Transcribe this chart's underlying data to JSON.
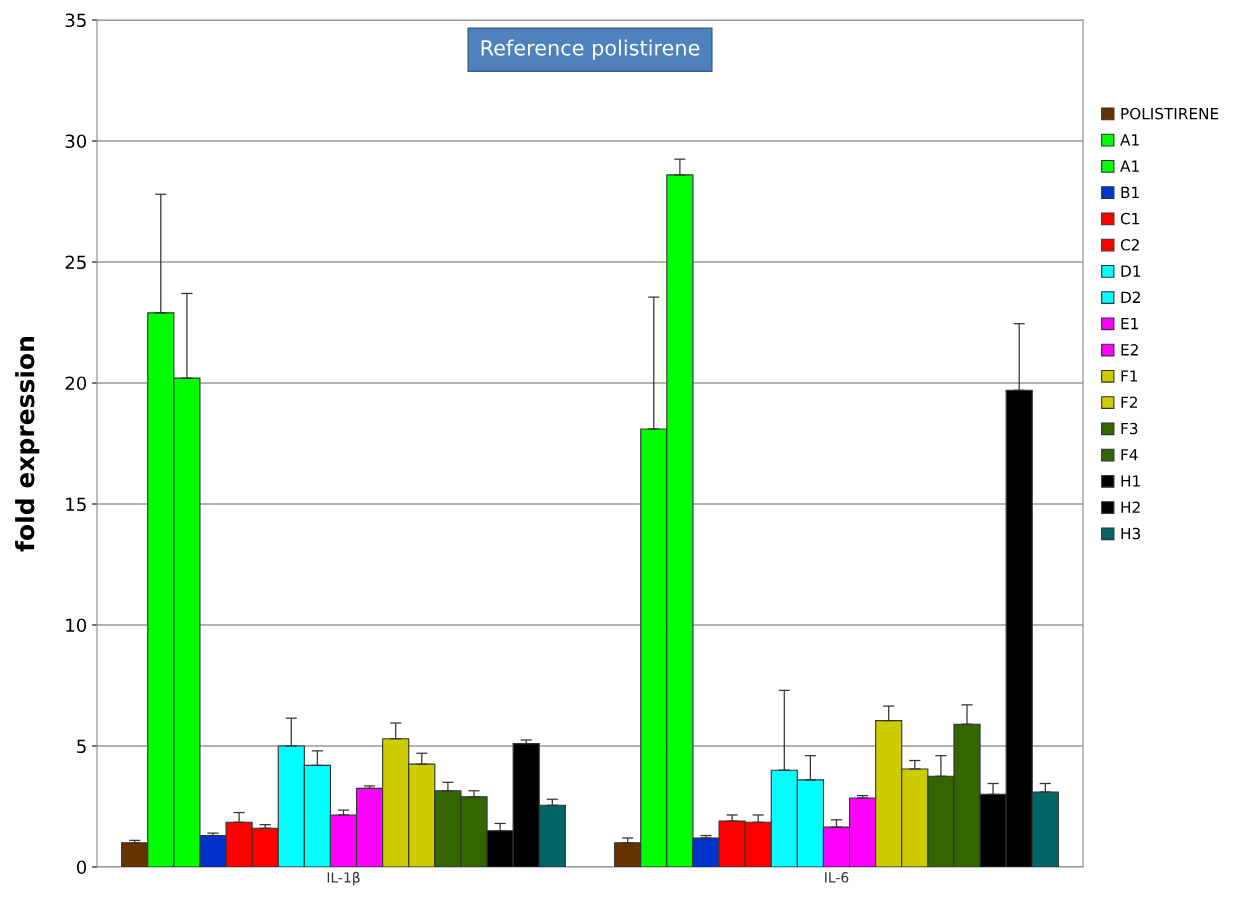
{
  "chart_data": {
    "type": "bar",
    "title": "Reference polistirene",
    "ylabel": "fold expression",
    "categories": [
      "IL-1β",
      "IL-6"
    ],
    "series": [
      {
        "name": "POLISTIRENE",
        "color": "#663300",
        "values": [
          1.0,
          1.0
        ],
        "errors": [
          [
            1.0,
            1.1
          ],
          [
            1.0,
            1.2
          ]
        ]
      },
      {
        "name": "A1",
        "color": "#00ff00",
        "values": [
          22.9,
          18.1
        ],
        "errors": [
          [
            22.9,
            27.8
          ],
          [
            18.1,
            23.55
          ]
        ]
      },
      {
        "name": "A1",
        "color": "#00ff00",
        "values": [
          20.2,
          28.6
        ],
        "errors": [
          [
            20.2,
            23.7
          ],
          [
            28.6,
            29.25
          ]
        ]
      },
      {
        "name": "B1",
        "color": "#0033cc",
        "values": [
          1.3,
          1.2
        ],
        "errors": [
          [
            1.3,
            1.4
          ],
          [
            1.2,
            1.3
          ]
        ]
      },
      {
        "name": "C1",
        "color": "#ff0000",
        "values": [
          1.85,
          1.9
        ],
        "errors": [
          [
            1.85,
            2.25
          ],
          [
            1.9,
            2.15
          ]
        ]
      },
      {
        "name": "C2",
        "color": "#ff0000",
        "values": [
          1.6,
          1.85
        ],
        "errors": [
          [
            1.6,
            1.75
          ],
          [
            1.85,
            2.15
          ]
        ]
      },
      {
        "name": "D1",
        "color": "#00ffff",
        "values": [
          5.0,
          4.0
        ],
        "errors": [
          [
            5.0,
            6.15
          ],
          [
            4.0,
            7.3
          ]
        ]
      },
      {
        "name": "D2",
        "color": "#00ffff",
        "values": [
          4.2,
          3.6
        ],
        "errors": [
          [
            4.2,
            4.8
          ],
          [
            3.6,
            4.6
          ]
        ]
      },
      {
        "name": "E1",
        "color": "#ff00ff",
        "values": [
          2.15,
          1.65
        ],
        "errors": [
          [
            2.15,
            2.35
          ],
          [
            1.65,
            1.95
          ]
        ]
      },
      {
        "name": "E2",
        "color": "#ff00ff",
        "values": [
          3.25,
          2.85
        ],
        "errors": [
          [
            3.25,
            3.35
          ],
          [
            2.85,
            2.95
          ]
        ]
      },
      {
        "name": "F1",
        "color": "#cccc00",
        "values": [
          5.3,
          6.05
        ],
        "errors": [
          [
            5.3,
            5.95
          ],
          [
            6.05,
            6.65
          ]
        ]
      },
      {
        "name": "F2",
        "color": "#cccc00",
        "values": [
          4.25,
          4.05
        ],
        "errors": [
          [
            4.25,
            4.7
          ],
          [
            4.05,
            4.4
          ]
        ]
      },
      {
        "name": "F3",
        "color": "#336600",
        "values": [
          3.15,
          3.75
        ],
        "errors": [
          [
            3.15,
            3.5
          ],
          [
            3.75,
            4.6
          ]
        ]
      },
      {
        "name": "F4",
        "color": "#336600",
        "values": [
          2.9,
          5.9
        ],
        "errors": [
          [
            2.9,
            3.15
          ],
          [
            5.9,
            6.7
          ]
        ]
      },
      {
        "name": "H1",
        "color": "#000000",
        "values": [
          1.5,
          3.0
        ],
        "errors": [
          [
            1.5,
            1.8
          ],
          [
            3.0,
            3.45
          ]
        ]
      },
      {
        "name": "H2",
        "color": "#000000",
        "values": [
          5.1,
          19.7
        ],
        "errors": [
          [
            5.1,
            5.25
          ],
          [
            19.7,
            22.45
          ]
        ]
      },
      {
        "name": "H3",
        "color": "#006666",
        "values": [
          2.55,
          3.1
        ],
        "errors": [
          [
            2.55,
            2.8
          ],
          [
            3.1,
            3.45
          ]
        ]
      }
    ],
    "ylim": [
      0,
      35
    ],
    "yticks": [
      0,
      5,
      10,
      15,
      20,
      25,
      30,
      35
    ],
    "grid": "y",
    "legend": "right"
  }
}
